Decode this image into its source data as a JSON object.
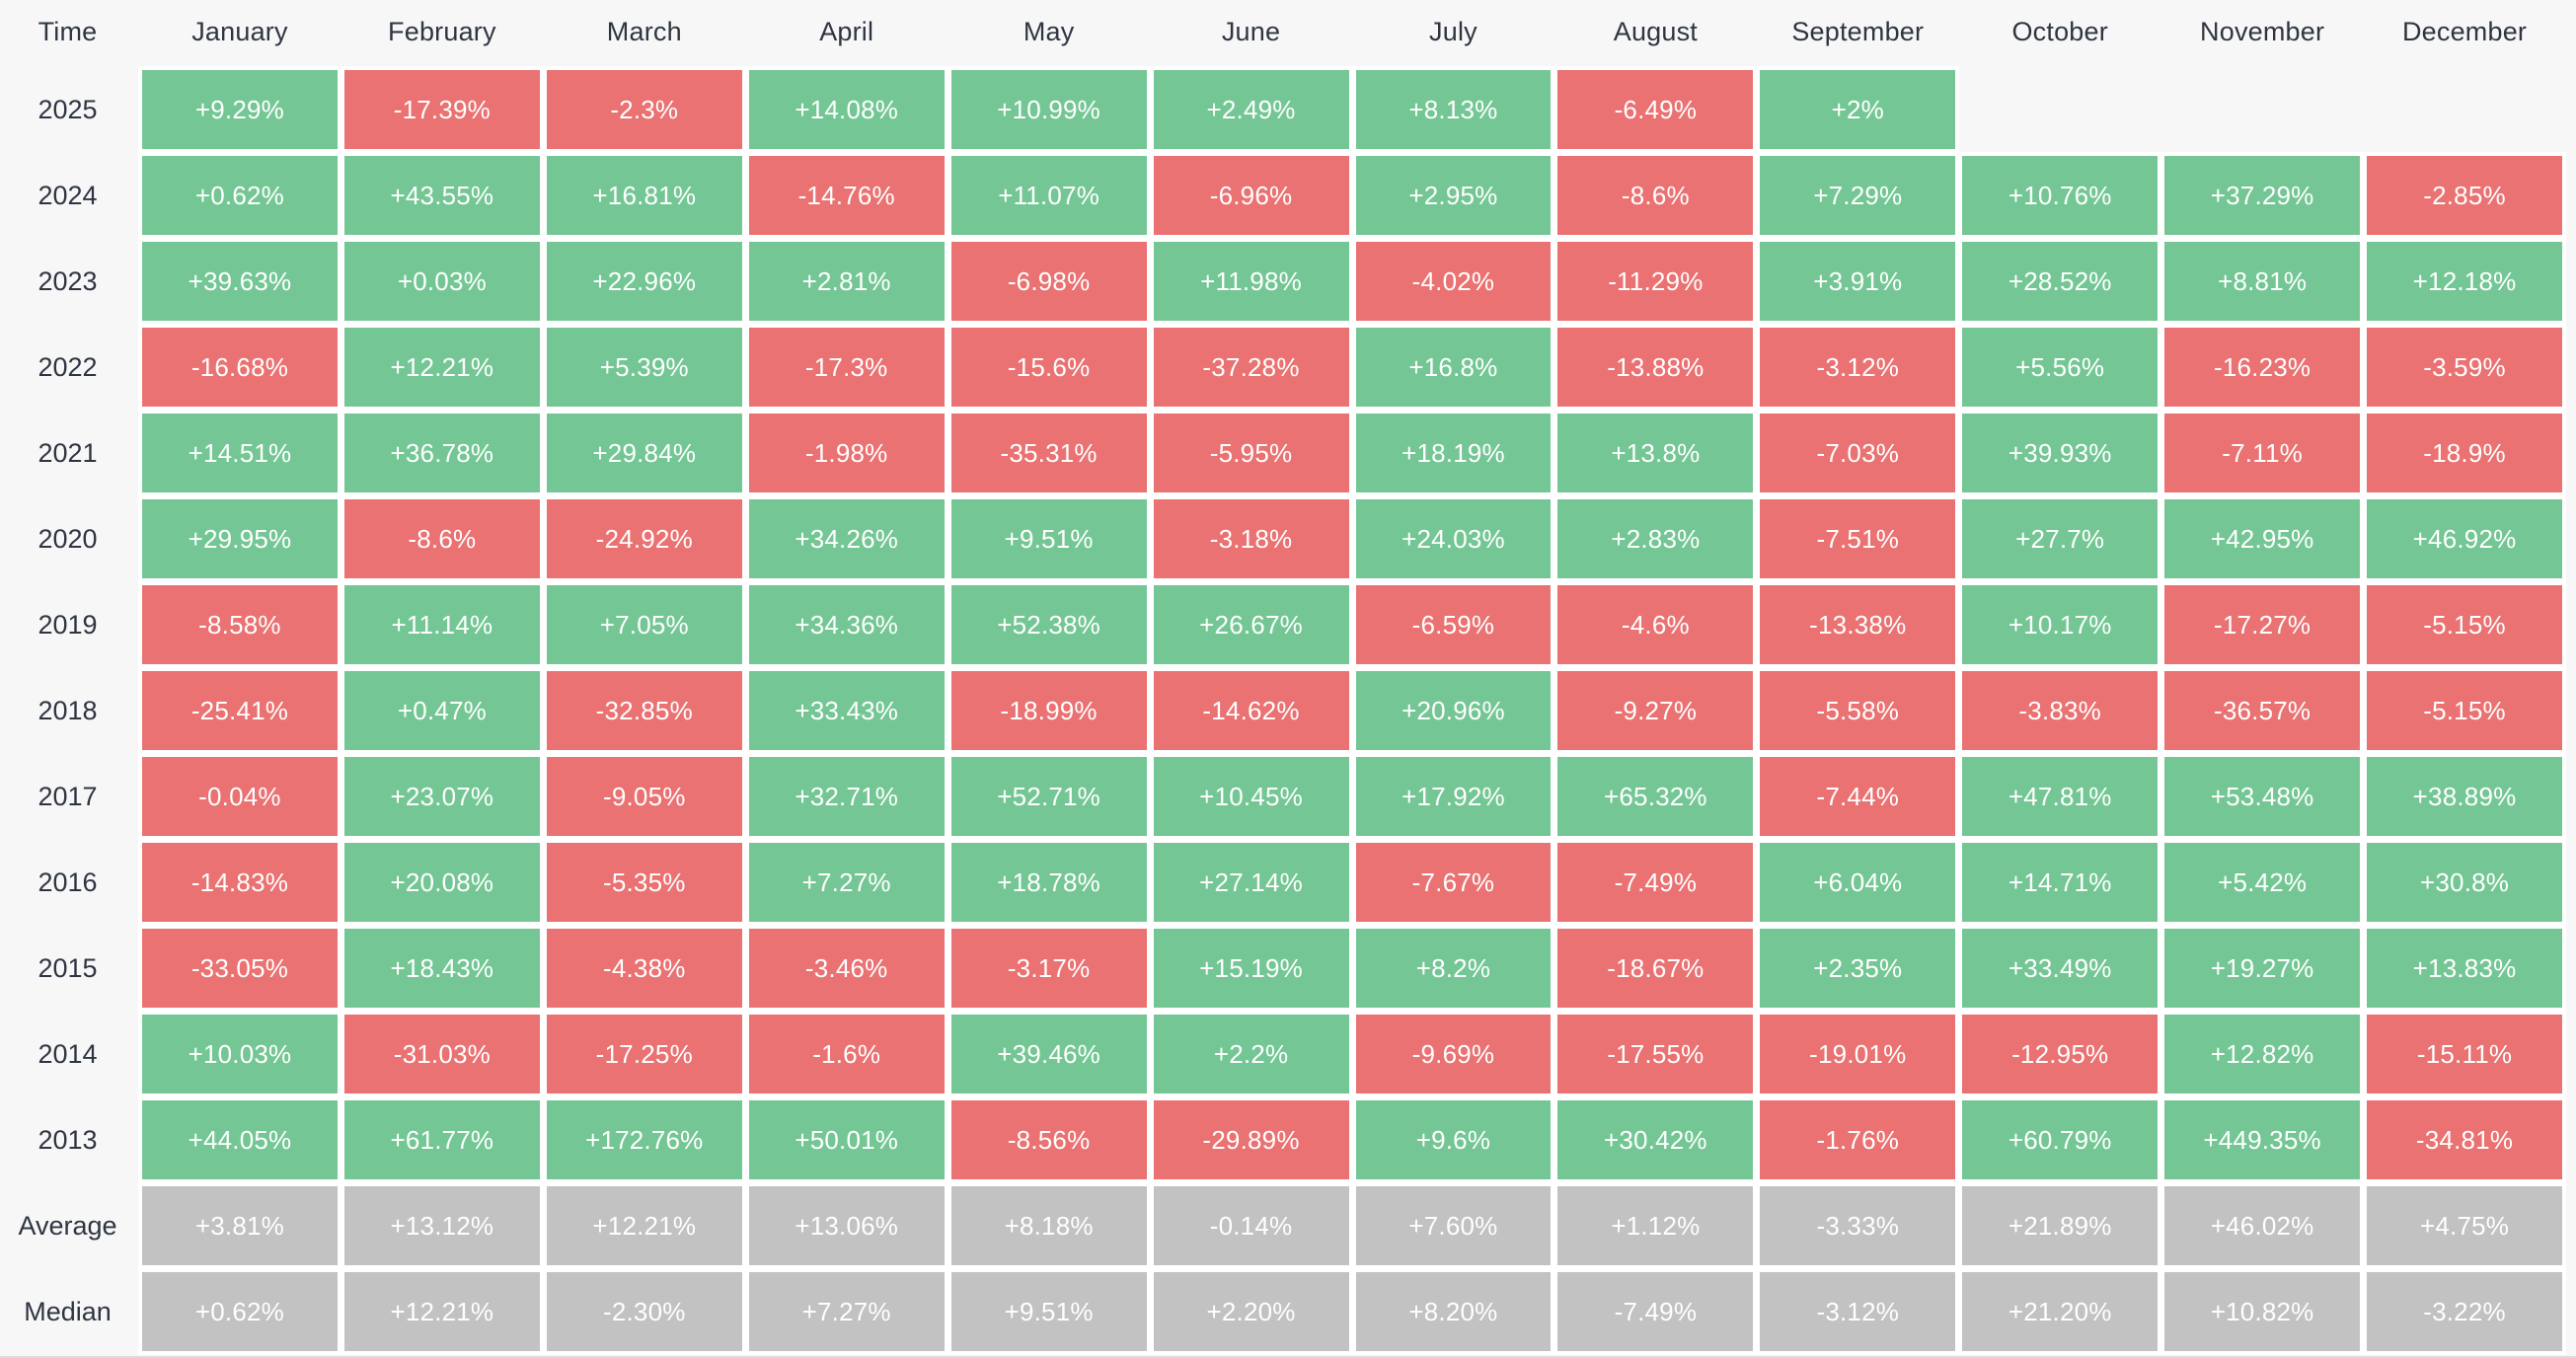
{
  "colors": {
    "positive": "#74C795",
    "negative": "#EA7272",
    "summary": "#C2C2C2",
    "background": "#F7F7F8",
    "gap": "#FFFFFF",
    "header_text": "#2F3540",
    "cell_text": "#FFFFFF",
    "bottom_divider": "#DCDCDE"
  },
  "chart_data": {
    "type": "heatmap",
    "legend_position": "none",
    "grid": false,
    "columns": [
      "Time",
      "January",
      "February",
      "March",
      "April",
      "May",
      "June",
      "July",
      "August",
      "September",
      "October",
      "November",
      "December"
    ],
    "value_color_rule": "positive values green, negative values red, summary rows gray, missing months blank",
    "rows": [
      {
        "label": "2025",
        "row_type": "year",
        "values": [
          "+9.29%",
          "-17.39%",
          "-2.3%",
          "+14.08%",
          "+10.99%",
          "+2.49%",
          "+8.13%",
          "-6.49%",
          "+2%",
          null,
          null,
          null
        ]
      },
      {
        "label": "2024",
        "row_type": "year",
        "values": [
          "+0.62%",
          "+43.55%",
          "+16.81%",
          "-14.76%",
          "+11.07%",
          "-6.96%",
          "+2.95%",
          "-8.6%",
          "+7.29%",
          "+10.76%",
          "+37.29%",
          "-2.85%"
        ]
      },
      {
        "label": "2023",
        "row_type": "year",
        "values": [
          "+39.63%",
          "+0.03%",
          "+22.96%",
          "+2.81%",
          "-6.98%",
          "+11.98%",
          "-4.02%",
          "-11.29%",
          "+3.91%",
          "+28.52%",
          "+8.81%",
          "+12.18%"
        ]
      },
      {
        "label": "2022",
        "row_type": "year",
        "values": [
          "-16.68%",
          "+12.21%",
          "+5.39%",
          "-17.3%",
          "-15.6%",
          "-37.28%",
          "+16.8%",
          "-13.88%",
          "-3.12%",
          "+5.56%",
          "-16.23%",
          "-3.59%"
        ]
      },
      {
        "label": "2021",
        "row_type": "year",
        "values": [
          "+14.51%",
          "+36.78%",
          "+29.84%",
          "-1.98%",
          "-35.31%",
          "-5.95%",
          "+18.19%",
          "+13.8%",
          "-7.03%",
          "+39.93%",
          "-7.11%",
          "-18.9%"
        ]
      },
      {
        "label": "2020",
        "row_type": "year",
        "values": [
          "+29.95%",
          "-8.6%",
          "-24.92%",
          "+34.26%",
          "+9.51%",
          "-3.18%",
          "+24.03%",
          "+2.83%",
          "-7.51%",
          "+27.7%",
          "+42.95%",
          "+46.92%"
        ]
      },
      {
        "label": "2019",
        "row_type": "year",
        "values": [
          "-8.58%",
          "+11.14%",
          "+7.05%",
          "+34.36%",
          "+52.38%",
          "+26.67%",
          "-6.59%",
          "-4.6%",
          "-13.38%",
          "+10.17%",
          "-17.27%",
          "-5.15%"
        ]
      },
      {
        "label": "2018",
        "row_type": "year",
        "values": [
          "-25.41%",
          "+0.47%",
          "-32.85%",
          "+33.43%",
          "-18.99%",
          "-14.62%",
          "+20.96%",
          "-9.27%",
          "-5.58%",
          "-3.83%",
          "-36.57%",
          "-5.15%"
        ]
      },
      {
        "label": "2017",
        "row_type": "year",
        "values": [
          "-0.04%",
          "+23.07%",
          "-9.05%",
          "+32.71%",
          "+52.71%",
          "+10.45%",
          "+17.92%",
          "+65.32%",
          "-7.44%",
          "+47.81%",
          "+53.48%",
          "+38.89%"
        ]
      },
      {
        "label": "2016",
        "row_type": "year",
        "values": [
          "-14.83%",
          "+20.08%",
          "-5.35%",
          "+7.27%",
          "+18.78%",
          "+27.14%",
          "-7.67%",
          "-7.49%",
          "+6.04%",
          "+14.71%",
          "+5.42%",
          "+30.8%"
        ]
      },
      {
        "label": "2015",
        "row_type": "year",
        "values": [
          "-33.05%",
          "+18.43%",
          "-4.38%",
          "-3.46%",
          "-3.17%",
          "+15.19%",
          "+8.2%",
          "-18.67%",
          "+2.35%",
          "+33.49%",
          "+19.27%",
          "+13.83%"
        ]
      },
      {
        "label": "2014",
        "row_type": "year",
        "values": [
          "+10.03%",
          "-31.03%",
          "-17.25%",
          "-1.6%",
          "+39.46%",
          "+2.2%",
          "-9.69%",
          "-17.55%",
          "-19.01%",
          "-12.95%",
          "+12.82%",
          "-15.11%"
        ]
      },
      {
        "label": "2013",
        "row_type": "year",
        "values": [
          "+44.05%",
          "+61.77%",
          "+172.76%",
          "+50.01%",
          "-8.56%",
          "-29.89%",
          "+9.6%",
          "+30.42%",
          "-1.76%",
          "+60.79%",
          "+449.35%",
          "-34.81%"
        ]
      },
      {
        "label": "Average",
        "row_type": "summary",
        "values": [
          "+3.81%",
          "+13.12%",
          "+12.21%",
          "+13.06%",
          "+8.18%",
          "-0.14%",
          "+7.60%",
          "+1.12%",
          "-3.33%",
          "+21.89%",
          "+46.02%",
          "+4.75%"
        ]
      },
      {
        "label": "Median",
        "row_type": "summary",
        "values": [
          "+0.62%",
          "+12.21%",
          "-2.30%",
          "+7.27%",
          "+9.51%",
          "+2.20%",
          "+8.20%",
          "-7.49%",
          "-3.12%",
          "+21.20%",
          "+10.82%",
          "-3.22%"
        ]
      }
    ]
  }
}
